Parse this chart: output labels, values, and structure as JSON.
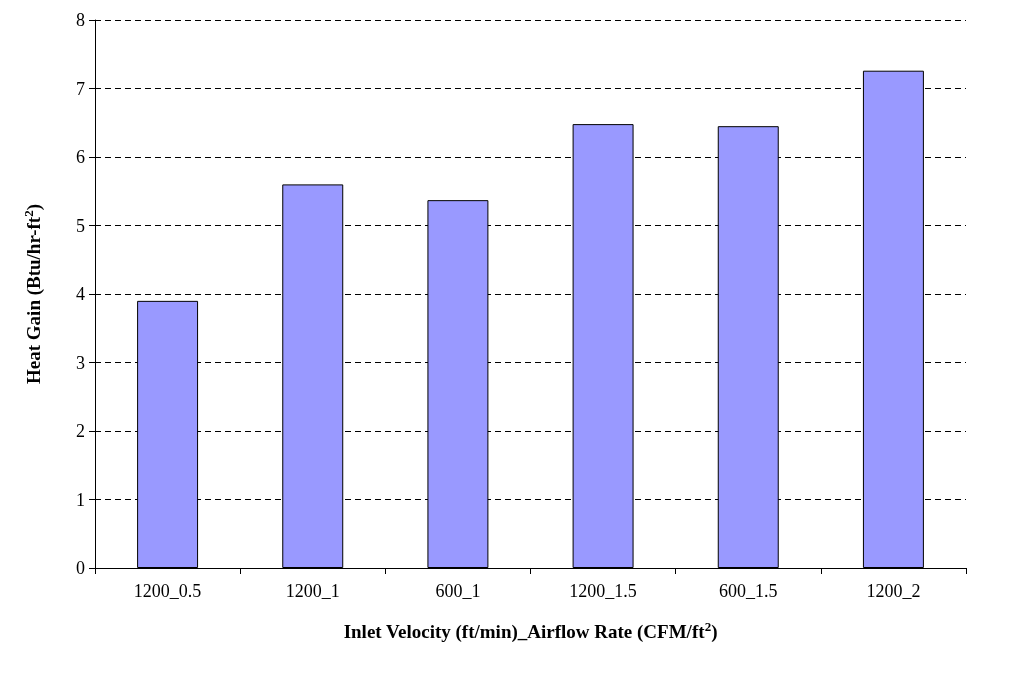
{
  "chart_data": {
    "type": "bar",
    "xlabel": "Inlet Velocity (ft/min)_Airflow Rate (CFM/ft$^{2}$)",
    "ylabel": "Heat Gain (Btu/hr-ft$^{2}$)",
    "categories": [
      "1200_0.5",
      "1200_1",
      "600_1",
      "1200_1.5",
      "600_1.5",
      "1200_2"
    ],
    "values": [
      3.9,
      5.6,
      5.37,
      6.48,
      6.45,
      7.26
    ],
    "color": "#9999ff",
    "ylim": [
      0,
      8
    ],
    "yticks": [
      0,
      1,
      2,
      3,
      4,
      5,
      6,
      7,
      8
    ],
    "grid": "y"
  }
}
